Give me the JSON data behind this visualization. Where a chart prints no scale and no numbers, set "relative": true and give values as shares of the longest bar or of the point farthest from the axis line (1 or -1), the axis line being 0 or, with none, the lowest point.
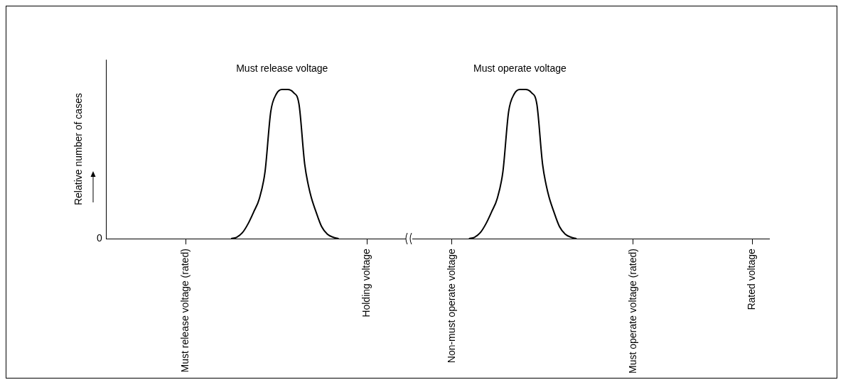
{
  "chart_data": {
    "type": "line",
    "relative": true,
    "ylabel": "Relative number of cases",
    "grid": false,
    "legend": false,
    "marker": "none",
    "line_style": "solid",
    "categories": [
      null,
      null,
      null,
      null,
      null,
      null,
      null,
      null,
      null,
      null,
      null,
      null,
      null,
      null,
      "Must release voltage (rated)",
      null,
      null,
      null,
      null,
      null,
      null,
      null,
      null,
      null,
      null,
      null,
      null,
      null,
      null,
      null,
      null,
      null,
      null,
      null,
      null,
      null,
      null,
      null,
      null,
      null,
      null,
      null,
      null,
      null,
      null,
      null,
      "Holding voltage",
      null,
      null,
      null,
      null,
      null,
      null,
      null,
      null,
      null,
      null,
      null,
      null,
      null,
      null,
      "Non-must operate voltage",
      null,
      null,
      null,
      null,
      null,
      null,
      null,
      null,
      null,
      null,
      null,
      null,
      null,
      null,
      null,
      null,
      null,
      null,
      null,
      null,
      null,
      null,
      null,
      null,
      null,
      null,
      null,
      null,
      null,
      null,
      null,
      "Must operate voltage (rated)",
      null,
      null,
      null,
      null,
      null,
      null,
      null,
      null,
      null,
      null,
      null,
      null,
      null,
      null,
      null,
      null,
      null,
      null,
      null,
      null,
      "Rated voltage",
      null,
      null,
      null
    ],
    "series": [
      {
        "color": "#000000",
        "values": [
          null,
          null,
          null,
          null,
          null,
          null,
          null,
          null,
          null,
          null,
          null,
          null,
          null,
          null,
          null,
          null,
          null,
          null,
          null,
          null,
          null,
          null,
          0,
          0.01,
          0.04,
          0.1,
          0.18,
          0.27,
          0.45,
          0.85,
          0.97,
          1,
          1,
          0.98,
          0.9,
          0.5,
          0.3,
          0.18,
          0.08,
          0.03,
          0.01,
          0,
          null,
          null,
          null,
          null,
          null,
          null,
          null,
          null,
          null,
          null,
          null,
          null,
          null,
          null,
          null,
          null,
          null,
          null,
          null,
          null,
          null,
          null,
          null,
          null,
          null,
          null,
          null,
          null,
          null,
          null,
          null,
          null,
          null,
          null,
          null,
          null,
          null,
          null,
          null,
          null,
          null,
          null,
          null,
          null,
          null,
          null,
          null,
          null,
          null,
          null,
          null,
          null,
          null,
          null,
          null,
          null,
          null,
          null,
          null,
          null,
          null,
          null,
          null,
          null,
          null,
          null,
          null,
          null,
          null,
          null,
          null,
          null,
          null,
          null,
          null,
          null
        ]
      },
      {
        "color": "#000000",
        "values": [
          null,
          null,
          null,
          null,
          null,
          null,
          null,
          null,
          null,
          null,
          null,
          null,
          null,
          null,
          null,
          null,
          null,
          null,
          null,
          null,
          null,
          null,
          null,
          null,
          null,
          null,
          null,
          null,
          null,
          null,
          null,
          null,
          null,
          null,
          null,
          null,
          null,
          null,
          null,
          null,
          null,
          null,
          null,
          null,
          null,
          null,
          null,
          null,
          null,
          null,
          null,
          null,
          null,
          null,
          null,
          null,
          null,
          null,
          null,
          null,
          null,
          null,
          null,
          null,
          0,
          0.01,
          0.04,
          0.1,
          0.18,
          0.27,
          0.45,
          0.85,
          0.97,
          1,
          1,
          0.98,
          0.9,
          0.5,
          0.3,
          0.18,
          0.08,
          0.03,
          0.01,
          0,
          null,
          null,
          null,
          null,
          null,
          null,
          null,
          null,
          null,
          null,
          null,
          null,
          null,
          null,
          null,
          null,
          null,
          null,
          null,
          null,
          null,
          null,
          null,
          null,
          null,
          null,
          null,
          null,
          null,
          null,
          null,
          null,
          null,
          null
        ]
      }
    ],
    "annotations": [
      "Must release voltage",
      "Must operate voltage",
      "0"
    ]
  }
}
